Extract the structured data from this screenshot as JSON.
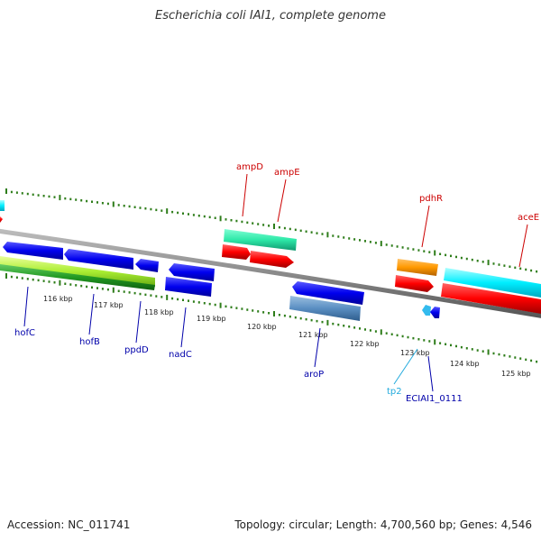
{
  "title": "Escherichia coli IAI1, complete genome",
  "footer": {
    "accession": "Accession: NC_011741",
    "summary": "Topology: circular; Length: 4,700,560 bp; Genes: 4,546"
  },
  "colors": {
    "backbone": "#8a8a8a",
    "tick": "#2e7d1a",
    "forward_label": "#cc0000",
    "reverse_label": "#0000aa",
    "trna_label": "#22aadd"
  },
  "scale_ticks": [
    "116 kbp",
    "117 kbp",
    "118 kbp",
    "119 kbp",
    "120 kbp",
    "121 kbp",
    "122 kbp",
    "123 kbp",
    "124 kbp",
    "125 kbp"
  ],
  "genes": [
    {
      "name": "ampD",
      "strand": "+",
      "color": "#cc0000"
    },
    {
      "name": "ampE",
      "strand": "+",
      "color": "#cc0000"
    },
    {
      "name": "pdhR",
      "strand": "+",
      "color": "#cc0000"
    },
    {
      "name": "aceE",
      "strand": "+",
      "color": "#cc0000"
    },
    {
      "name": "hofC",
      "strand": "-",
      "color": "#0000aa"
    },
    {
      "name": "hofB",
      "strand": "-",
      "color": "#0000aa"
    },
    {
      "name": "ppdD",
      "strand": "-",
      "color": "#0000aa"
    },
    {
      "name": "nadC",
      "strand": "-",
      "color": "#0000aa"
    },
    {
      "name": "aroP",
      "strand": "-",
      "color": "#0000aa"
    },
    {
      "name": "tp2",
      "strand": "-",
      "color": "#22aadd"
    },
    {
      "name": "ECIAI1_0111",
      "strand": "-",
      "color": "#0000aa"
    }
  ]
}
